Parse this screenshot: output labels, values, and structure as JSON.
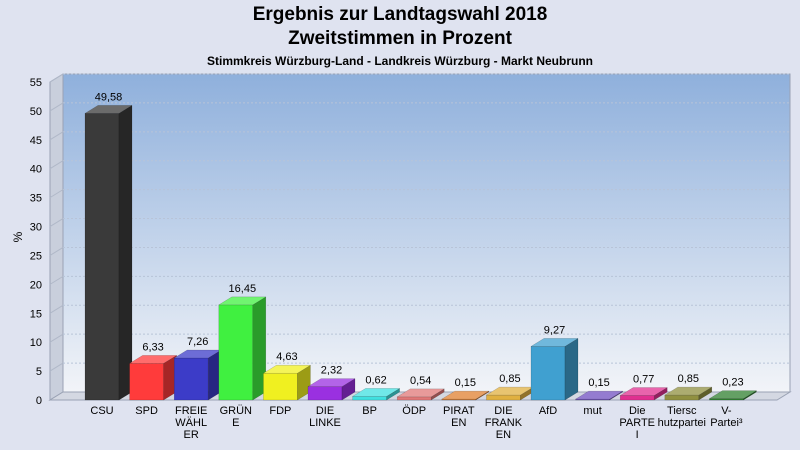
{
  "chart_data": {
    "type": "bar",
    "title": "Ergebnis zur Landtagswahl 2018",
    "subtitle": "Zweitstimmen in Prozent",
    "subtitle2": "Stimmkreis Würzburg-Land - Landkreis Würzburg - Markt Neubrunn",
    "ylabel": "%",
    "ylim": [
      0,
      55
    ],
    "yticks": [
      0,
      5,
      10,
      15,
      20,
      25,
      30,
      35,
      40,
      45,
      50,
      55
    ],
    "grid": true,
    "categories": [
      [
        "CSU"
      ],
      [
        "SPD"
      ],
      [
        "FREIE",
        "WÄHL",
        "ER"
      ],
      [
        "GRÜN",
        "E"
      ],
      [
        "FDP"
      ],
      [
        "DIE",
        "LINKE"
      ],
      [
        "BP"
      ],
      [
        "ÖDP"
      ],
      [
        "PIRAT",
        "EN"
      ],
      [
        "DIE",
        "FRANK",
        "EN"
      ],
      [
        "AfD"
      ],
      [
        "mut"
      ],
      [
        "Die",
        "PARTE",
        "I"
      ],
      [
        "Tiersc",
        "hutzpartei"
      ],
      [
        "V-",
        "Partei³"
      ]
    ],
    "values": [
      49.58,
      6.33,
      7.26,
      16.45,
      4.63,
      2.32,
      0.62,
      0.54,
      0.15,
      0.85,
      9.27,
      0.15,
      0.77,
      0.85,
      0.23
    ],
    "labels": [
      "49,58",
      "6,33",
      "7,26",
      "16,45",
      "4,63",
      "2,32",
      "0,62",
      "0,54",
      "0,15",
      "0,85",
      "9,27",
      "0,15",
      "0,77",
      "0,85",
      "0,23"
    ],
    "colors": [
      "#3a3a3a",
      "#ff3b3b",
      "#3c3cc8",
      "#40f040",
      "#f0f020",
      "#9a30e0",
      "#40e0e0",
      "#e07878",
      "#e08030",
      "#e0b040",
      "#40a0d0",
      "#7050c0",
      "#e03090",
      "#909040",
      "#308030"
    ],
    "background_gradient": [
      "#8fb0dc",
      "#f2f4f8"
    ]
  }
}
